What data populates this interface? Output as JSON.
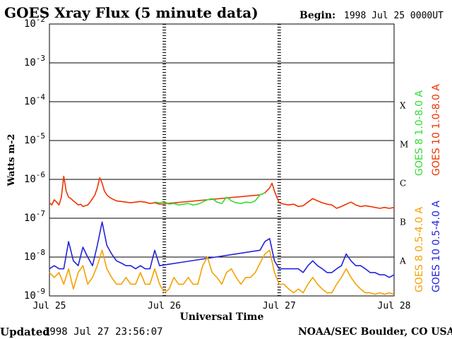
{
  "header": {
    "title": "GOES Xray Flux (5 minute data)",
    "begin_label": "Begin:",
    "begin_value": "1998 Jul 25 0000UT"
  },
  "footer": {
    "updated_label": "Updated",
    "updated_value": "1998 Jul 27 23:56:07",
    "source": "NOAA/SEC Boulder, CO USA"
  },
  "chart_data": {
    "type": "line",
    "title": "GOES Xray Flux (5 minute data)",
    "xlabel": "Universal Time",
    "ylabel": "Watts m-2",
    "yscale": "log",
    "ylim": [
      1e-09,
      0.01
    ],
    "xlim": [
      0,
      72
    ],
    "x_unit": "hours since 1998 Jul 25 00:00 UT",
    "x_ticks": [
      {
        "x": 0,
        "label": "Jul 25"
      },
      {
        "x": 24,
        "label": "Jul 26"
      },
      {
        "x": 48,
        "label": "Jul 27"
      },
      {
        "x": 72,
        "label": "Jul 28"
      }
    ],
    "y_ticks": [
      {
        "base": "10",
        "exp": "-2",
        "value": 0.01
      },
      {
        "base": "10",
        "exp": "-3",
        "value": 0.001
      },
      {
        "base": "10",
        "exp": "-4",
        "value": 0.0001
      },
      {
        "base": "10",
        "exp": "-5",
        "value": 1e-05
      },
      {
        "base": "10",
        "exp": "-6",
        "value": 1e-06
      },
      {
        "base": "10",
        "exp": "-7",
        "value": 1e-07
      },
      {
        "base": "10",
        "exp": "-8",
        "value": 1e-08
      },
      {
        "base": "10",
        "exp": "-9",
        "value": 1e-09
      }
    ],
    "flare_classes": [
      {
        "label": "X",
        "value": 0.0001
      },
      {
        "label": "M",
        "value": 1e-05
      },
      {
        "label": "C",
        "value": 1e-06
      },
      {
        "label": "B",
        "value": 1e-07
      },
      {
        "label": "A",
        "value": 1e-08
      }
    ],
    "grid": true,
    "legend_position": "right",
    "legend_groups": [
      [
        {
          "name": "GOES 8 1.0-8.0 A",
          "color": "#33dd33"
        },
        {
          "name": "GOES 10 1.0-8.0 A",
          "color": "#ee3300"
        }
      ],
      [
        {
          "name": "GOES 8 0.5-4.0 A",
          "color": "#f5a000"
        },
        {
          "name": "GOES 10 0.5-4.0 A",
          "color": "#2222dd"
        }
      ]
    ],
    "series": [
      {
        "name": "GOES 10 1.0-8.0 A",
        "color": "#ee3300",
        "x": [
          0,
          0.5,
          1,
          1.5,
          2,
          2.5,
          3,
          3.5,
          4,
          4.5,
          5,
          5.5,
          6,
          6.5,
          7,
          7.5,
          8,
          8.5,
          9,
          9.5,
          10,
          10.5,
          11,
          11.5,
          12,
          12.5,
          13,
          13.5,
          14,
          15,
          16,
          17,
          18,
          19,
          20,
          21,
          22,
          23,
          44,
          45,
          46,
          46.5,
          47,
          47.5,
          48,
          49,
          50,
          51,
          52,
          53,
          54,
          55,
          56,
          57,
          58,
          59,
          60,
          61,
          62,
          63,
          64,
          65,
          66,
          67,
          68,
          69,
          70,
          71,
          72
        ],
        "y": [
          2.5e-07,
          2.2e-07,
          3e-07,
          2.6e-07,
          2.2e-07,
          3.5e-07,
          1.2e-06,
          5e-07,
          3.5e-07,
          3.2e-07,
          2.8e-07,
          2.5e-07,
          2.2e-07,
          2.3e-07,
          2e-07,
          2.1e-07,
          2.2e-07,
          2.6e-07,
          3.2e-07,
          4e-07,
          6e-07,
          1.1e-06,
          8e-07,
          5e-07,
          4e-07,
          3.5e-07,
          3.2e-07,
          3e-07,
          2.8e-07,
          2.7e-07,
          2.6e-07,
          2.5e-07,
          2.6e-07,
          2.7e-07,
          2.6e-07,
          2.4e-07,
          2.5e-07,
          2.3e-07,
          4e-07,
          4.5e-07,
          6e-07,
          8e-07,
          5e-07,
          3.5e-07,
          2.5e-07,
          2.3e-07,
          2.2e-07,
          2.3e-07,
          2e-07,
          2.1e-07,
          2.6e-07,
          3.2e-07,
          2.8e-07,
          2.5e-07,
          2.3e-07,
          2.2e-07,
          1.8e-07,
          2e-07,
          2.3e-07,
          2.6e-07,
          2.2e-07,
          2e-07,
          2.1e-07,
          2e-07,
          1.9e-07,
          1.8e-07,
          1.9e-07,
          1.8e-07,
          1.9e-07
        ]
      },
      {
        "name": "GOES 8 1.0-8.0 A",
        "color": "#33dd33",
        "x": [
          22,
          23,
          24,
          25,
          26,
          27,
          28,
          29,
          30,
          31,
          32,
          33,
          34,
          35,
          36,
          37,
          38,
          39,
          40,
          41,
          42,
          43,
          44,
          45
        ],
        "y": [
          2.6e-07,
          2.5e-07,
          2.7e-07,
          2.3e-07,
          2.4e-07,
          2.2e-07,
          2.3e-07,
          2.4e-07,
          2.2e-07,
          2.3e-07,
          2.6e-07,
          3e-07,
          3.2e-07,
          2.6e-07,
          2.4e-07,
          3.5e-07,
          2.8e-07,
          2.5e-07,
          2.4e-07,
          2.6e-07,
          2.5e-07,
          2.8e-07,
          4e-07,
          4.5e-07
        ]
      },
      {
        "name": "GOES 10 0.5-4.0 A",
        "color": "#2222dd",
        "x": [
          0,
          1,
          2,
          3,
          4,
          5,
          6,
          7,
          8,
          9,
          10,
          11,
          12,
          13,
          14,
          15,
          16,
          17,
          18,
          19,
          20,
          21,
          22,
          23,
          44,
          45,
          46,
          47,
          48,
          49,
          50,
          51,
          52,
          53,
          54,
          55,
          56,
          57,
          58,
          59,
          60,
          61,
          62,
          63,
          64,
          65,
          66,
          67,
          68,
          69,
          70,
          71,
          72
        ],
        "y": [
          5e-09,
          6e-09,
          5e-09,
          5e-09,
          2.5e-08,
          8e-09,
          6e-09,
          1.8e-08,
          1e-08,
          6e-09,
          2e-08,
          8e-08,
          2e-08,
          1.2e-08,
          8e-09,
          7e-09,
          6e-09,
          6e-09,
          5e-09,
          6e-09,
          5e-09,
          5e-09,
          1.5e-08,
          6e-09,
          1.5e-08,
          2.5e-08,
          3e-08,
          8e-09,
          5e-09,
          5e-09,
          5e-09,
          5e-09,
          5e-09,
          4e-09,
          6e-09,
          8e-09,
          6e-09,
          5e-09,
          4e-09,
          4e-09,
          5e-09,
          6e-09,
          1.2e-08,
          8e-09,
          6e-09,
          6e-09,
          5e-09,
          4e-09,
          4e-09,
          3.5e-09,
          3.5e-09,
          3e-09,
          3.5e-09
        ]
      },
      {
        "name": "GOES 8 0.5-4.0 A",
        "color": "#f5a000",
        "x": [
          0,
          1,
          2,
          3,
          4,
          5,
          6,
          7,
          8,
          9,
          10,
          11,
          12,
          13,
          14,
          15,
          16,
          17,
          18,
          19,
          20,
          21,
          22,
          23,
          24,
          25,
          26,
          27,
          28,
          29,
          30,
          31,
          32,
          33,
          34,
          35,
          36,
          37,
          38,
          39,
          40,
          41,
          42,
          43,
          44,
          45,
          46,
          47,
          48,
          49,
          50,
          51,
          52,
          53,
          54,
          55,
          56,
          57,
          58,
          59,
          60,
          61,
          62,
          63,
          64,
          65,
          66,
          67,
          68,
          69,
          70,
          71,
          72
        ],
        "y": [
          4e-09,
          3e-09,
          4e-09,
          2e-09,
          5e-09,
          1.5e-09,
          4e-09,
          6e-09,
          2e-09,
          3e-09,
          6e-09,
          1.5e-08,
          5e-09,
          3e-09,
          2e-09,
          2e-09,
          3e-09,
          2e-09,
          2e-09,
          4e-09,
          2e-09,
          2e-09,
          5e-09,
          2e-09,
          1.2e-09,
          1.5e-09,
          3e-09,
          2e-09,
          2e-09,
          3e-09,
          2e-09,
          2e-09,
          6e-09,
          1e-08,
          4e-09,
          3e-09,
          2e-09,
          4e-09,
          5e-09,
          3e-09,
          2e-09,
          3e-09,
          3e-09,
          4e-09,
          7e-09,
          1.2e-08,
          1.5e-08,
          4e-09,
          2e-09,
          2e-09,
          1.5e-09,
          1.2e-09,
          1.5e-09,
          1.2e-09,
          2e-09,
          3e-09,
          2e-09,
          1.5e-09,
          1.2e-09,
          1.2e-09,
          2e-09,
          3e-09,
          5e-09,
          3e-09,
          2e-09,
          1.5e-09,
          1.2e-09,
          1.2e-09,
          1.1e-09,
          1.2e-09,
          1.1e-09,
          1.2e-09,
          1.1e-09
        ]
      }
    ]
  }
}
